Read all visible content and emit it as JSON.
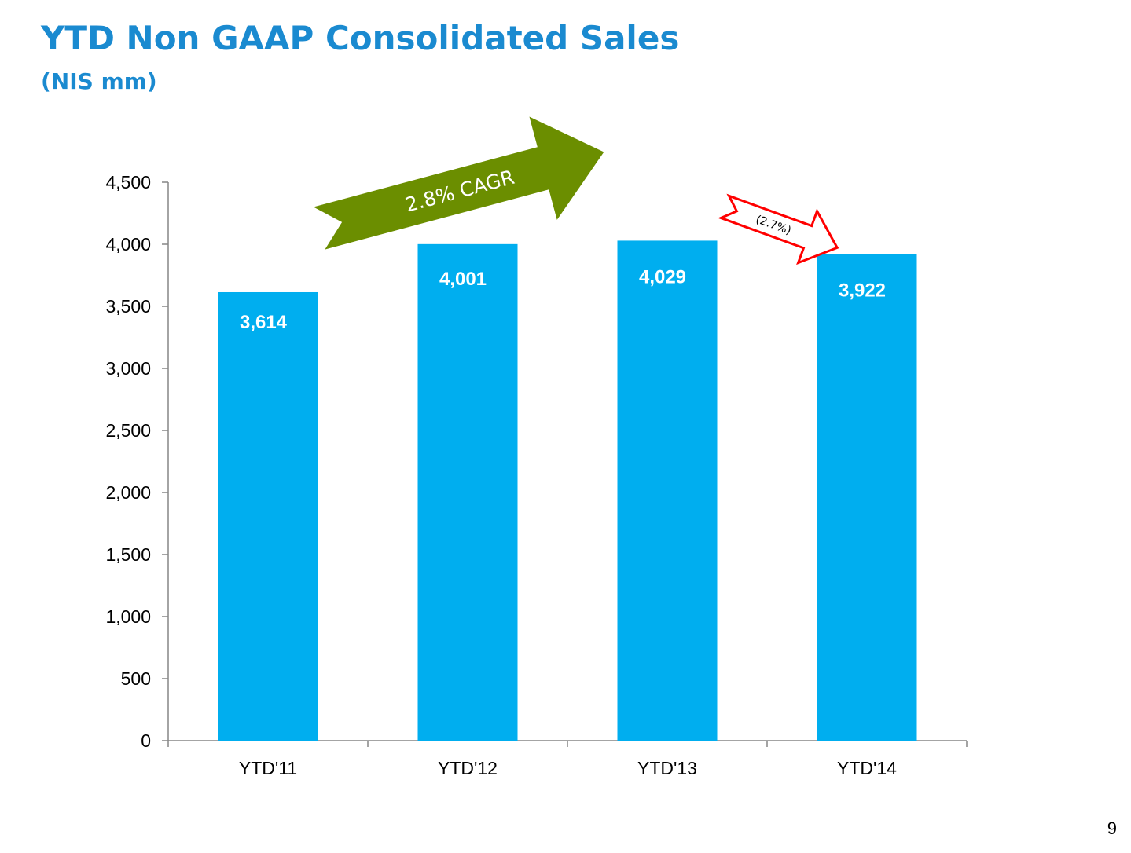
{
  "slide": {
    "title": "YTD Non GAAP Consolidated Sales",
    "subtitle": "(NIS mm)",
    "page_number": "9"
  },
  "chart_data": {
    "type": "bar",
    "title": "YTD Non GAAP Consolidated Sales",
    "subtitle": "(NIS mm)",
    "xlabel": "",
    "ylabel": "",
    "categories": [
      "YTD'11",
      "YTD'12",
      "YTD'13",
      "YTD'14"
    ],
    "values": [
      3614,
      4001,
      4029,
      3922
    ],
    "data_labels": [
      "3,614",
      "4,001",
      "4,029",
      "3,922"
    ],
    "ylim": [
      0,
      4500
    ],
    "y_ticks": [
      0,
      500,
      1000,
      1500,
      2000,
      2500,
      3000,
      3500,
      4000,
      4500
    ],
    "y_tick_labels": [
      "0",
      "500",
      "1,000",
      "1,500",
      "2,000",
      "2,500",
      "3,000",
      "3,500",
      "4,000",
      "4,500"
    ],
    "grid": false,
    "legend": "none",
    "annotations": [
      {
        "name": "cagr-arrow",
        "text": "2.8% CAGR"
      },
      {
        "name": "decline-arrow",
        "text": "(2.7%)"
      }
    ],
    "colors": {
      "bar": "#00aeef",
      "bar_label": "#ffffff",
      "cagr_arrow": "#6b8e00",
      "cagr_text": "#ffffff",
      "decline_arrow_fill": "#ffffff",
      "decline_arrow_stroke": "#ff0000",
      "decline_text": "#000000",
      "axis": "#868686",
      "tick_text": "#000000",
      "title": "#1a8ad0"
    }
  }
}
